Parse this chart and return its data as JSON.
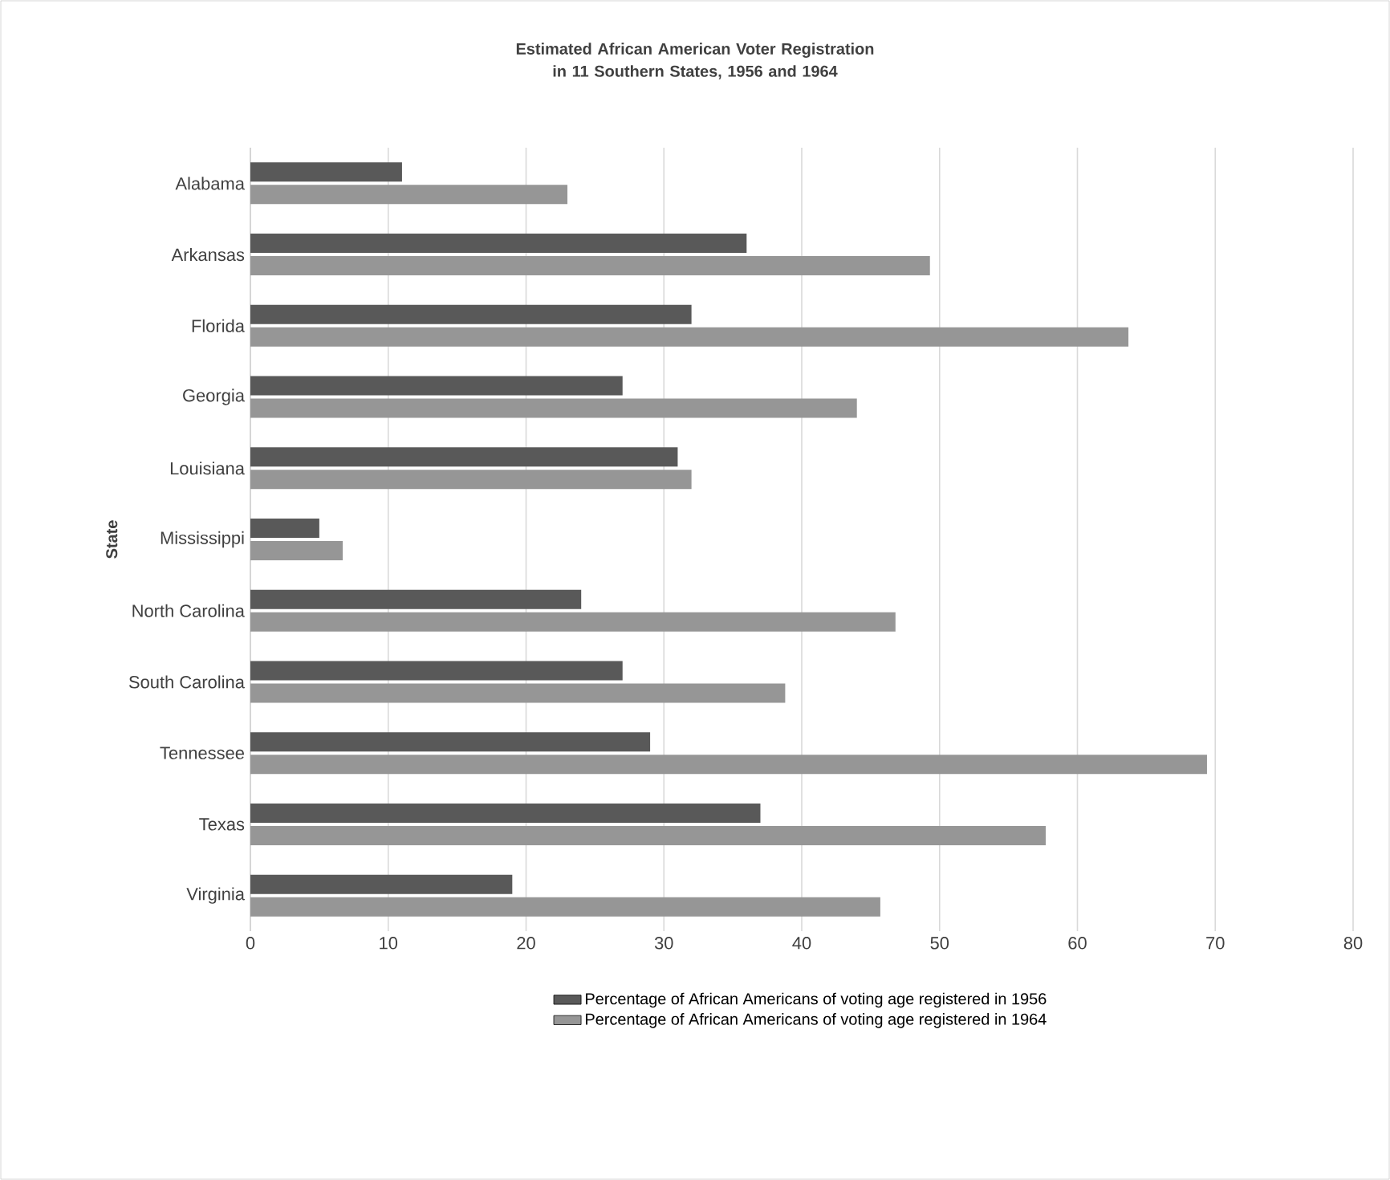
{
  "chart_data": {
    "type": "bar",
    "orientation": "horizontal",
    "title": "Estimated African American Voter Registration in 11 Southern States, 1956 and 1964",
    "ylabel": "State",
    "categories": [
      "Alabama",
      "Arkansas",
      "Florida",
      "Georgia",
      "Louisiana",
      "Mississippi",
      "North Carolina",
      "South Carolina",
      "Tennessee",
      "Texas",
      "Virginia"
    ],
    "series": [
      {
        "name": "Percentage of African Americans of voting age registered in 1956",
        "color": "#595959",
        "values": [
          11,
          36,
          32,
          27,
          31,
          5,
          24,
          27,
          29,
          37,
          19
        ]
      },
      {
        "name": "Percentage of African Americans of voting age registered in 1964",
        "color": "#969696",
        "values": [
          23,
          49.3,
          63.7,
          44,
          32,
          6.7,
          46.8,
          38.8,
          69.4,
          57.7,
          45.7
        ]
      }
    ],
    "xlim": [
      0,
      80
    ],
    "xticks": [
      0,
      10,
      20,
      30,
      40,
      50,
      60,
      70,
      80
    ],
    "grid": "x",
    "legend": "bottom"
  }
}
